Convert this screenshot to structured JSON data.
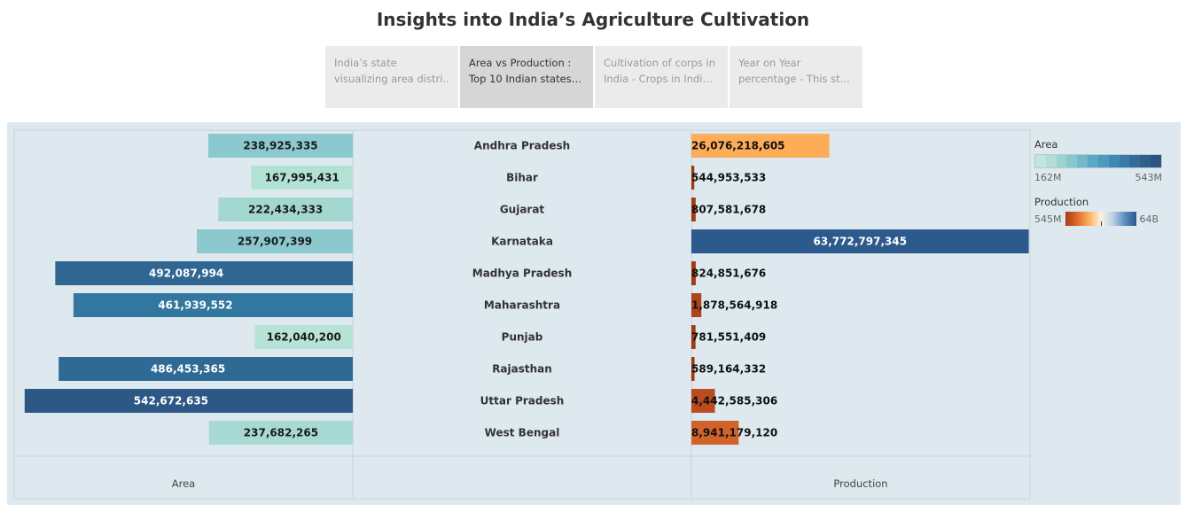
{
  "title": "Insights into India’s Agriculture Cultivation",
  "tabs": [
    {
      "line1": "India’s state",
      "line2": "visualizing area distri..",
      "active": false
    },
    {
      "line1": "Area vs Production :",
      "line2": "Top 10 Indian states -..",
      "active": true
    },
    {
      "line1": "Cultivation of corps in",
      "line2": "India - Crops in India s..",
      "active": false
    },
    {
      "line1": "Year on Year",
      "line2": "percentage - This stac..",
      "active": false
    }
  ],
  "legend": {
    "area_title": "Area",
    "area_min": "162M",
    "area_max": "543M",
    "area_colors": [
      "#c3e6dc",
      "#b0ded5",
      "#9cd4cf",
      "#86c8cc",
      "#6fb9c8",
      "#59aac2",
      "#4a9abb",
      "#3f8ab2",
      "#3a7ba6",
      "#356c98",
      "#315e8b",
      "#2d5380"
    ],
    "production_title": "Production",
    "production_min": "545M",
    "production_max": "64B"
  },
  "chart_data": {
    "type": "bar",
    "categories": [
      "Andhra Pradesh",
      "Bihar",
      "Gujarat",
      "Karnataka",
      "Madhya Pradesh",
      "Maharashtra",
      "Punjab",
      "Rajasthan",
      "Uttar Pradesh",
      "West Bengal"
    ],
    "series": [
      {
        "name": "Area",
        "values": [
          238925335,
          167995431,
          222434333,
          257907399,
          492087994,
          461939552,
          162040200,
          486453365,
          542672635,
          237682265
        ],
        "labels": [
          "238,925,335",
          "167,995,431",
          "222,434,333",
          "257,907,399",
          "492,087,994",
          "461,939,552",
          "162,040,200",
          "486,453,365",
          "542,672,635",
          "237,682,265"
        ]
      },
      {
        "name": "Production",
        "values": [
          26076218605,
          544953533,
          807581678,
          63772797345,
          824851676,
          1878564918,
          781551409,
          589164332,
          4442585306,
          8941179120
        ],
        "labels": [
          "26,076,218,605",
          "544,953,533",
          "807,581,678",
          "63,772,797,345",
          "824,851,676",
          "1,878,564,918",
          "781,551,409",
          "589,164,332",
          "4,442,585,306",
          "8,941,179,120"
        ]
      }
    ],
    "colors": {
      "area": [
        "#8bc9cf",
        "#b2e2d4",
        "#a3d8d1",
        "#8bc9cf",
        "#2f6692",
        "#32779f",
        "#b7e3d6",
        "#2f6a95",
        "#2d5784",
        "#a6dad2"
      ],
      "production": [
        "#fdac58",
        "#a03912",
        "#a33b12",
        "#2d5a8c",
        "#a33b12",
        "#af4419",
        "#a23a12",
        "#a03912",
        "#bb4c1d",
        "#d1622a"
      ]
    },
    "xlabel_left": "Area",
    "xlabel_right": "Production"
  }
}
